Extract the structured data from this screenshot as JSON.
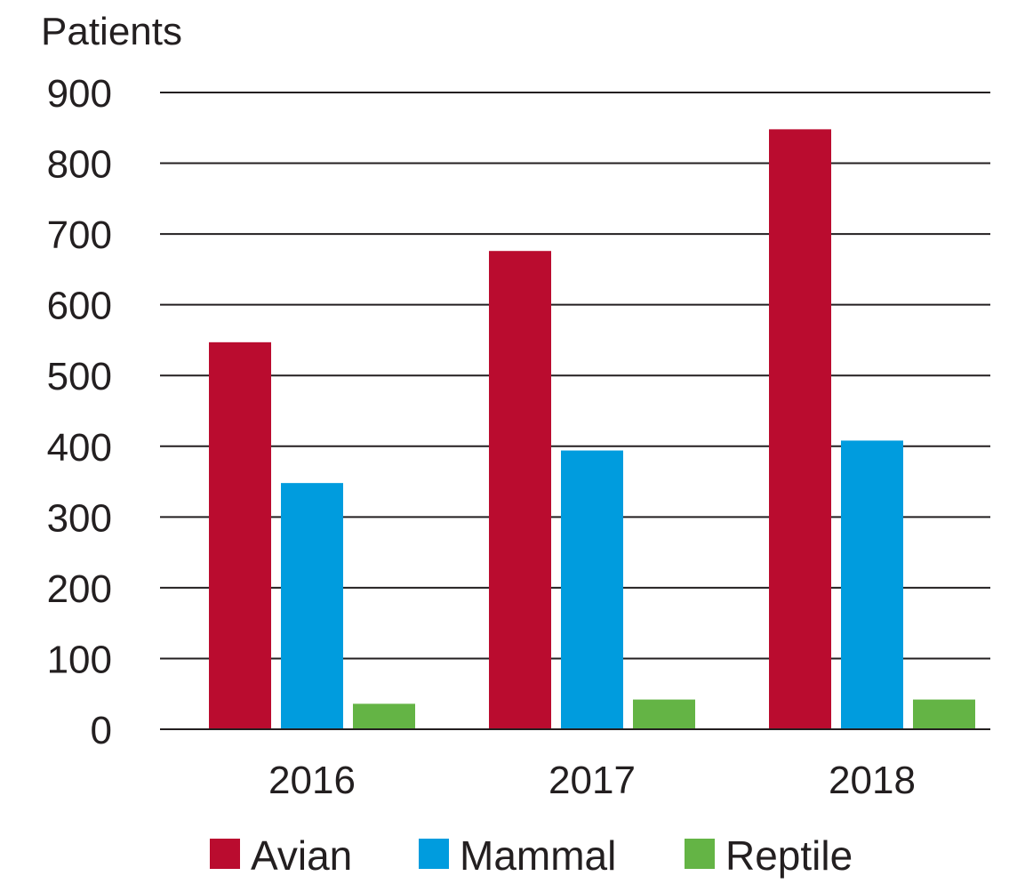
{
  "chart_data": {
    "type": "bar",
    "ylabel": "Patients",
    "xlabel": "",
    "ylim": [
      0,
      900
    ],
    "yticks": [
      0,
      100,
      200,
      300,
      400,
      500,
      600,
      700,
      800,
      900
    ],
    "grid": true,
    "legend_position": "bottom",
    "categories": [
      "2016",
      "2017",
      "2018"
    ],
    "series": [
      {
        "name": "Avian",
        "color": "#ba0c2f",
        "values": [
          547,
          676,
          848
        ]
      },
      {
        "name": "Mammal",
        "color": "#009cde",
        "values": [
          348,
          394,
          408
        ]
      },
      {
        "name": "Reptile",
        "color": "#64b445",
        "values": [
          36,
          42,
          42
        ]
      }
    ]
  }
}
